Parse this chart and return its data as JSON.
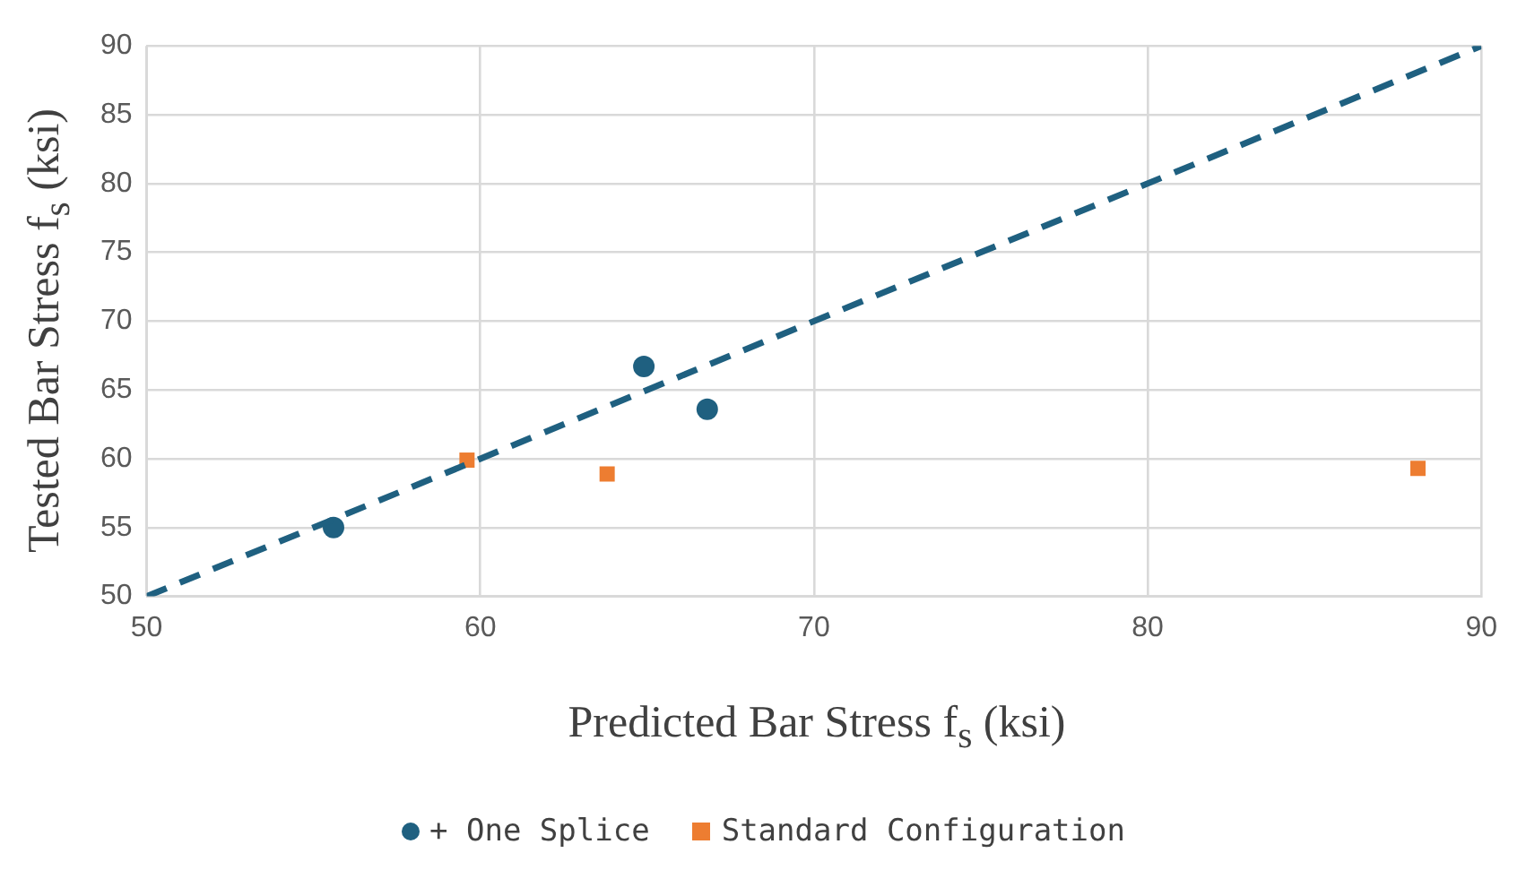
{
  "chart_data": {
    "type": "scatter",
    "xlabel": "Predicted Bar Stress f$_{s}$ (ksi)",
    "ylabel": "Tested Bar Stress f$_{s}$ (ksi)",
    "xlim": [
      50,
      90
    ],
    "xticks": [
      50,
      60,
      70,
      80,
      90
    ],
    "ylim": [
      50,
      90
    ],
    "yticks": [
      50,
      55,
      60,
      65,
      70,
      75,
      80,
      85,
      90
    ],
    "grid": true,
    "legend": "bottom",
    "series": [
      {
        "type": "line",
        "x": [
          50,
          90
        ],
        "values": [
          50,
          90
        ],
        "color": "#1f6080",
        "marker": "none",
        "line_style": "dashed"
      },
      {
        "name": "+ One Splice",
        "x": [
          55.6,
          64.9,
          66.8
        ],
        "values": [
          55.0,
          66.7,
          63.6
        ],
        "color": "#1f6080",
        "marker": "circle"
      },
      {
        "name": "Standard Configuration",
        "x": [
          59.6,
          63.8,
          88.1
        ],
        "values": [
          59.9,
          58.9,
          59.3
        ],
        "color": "#ed7d31",
        "marker": "square"
      }
    ]
  }
}
